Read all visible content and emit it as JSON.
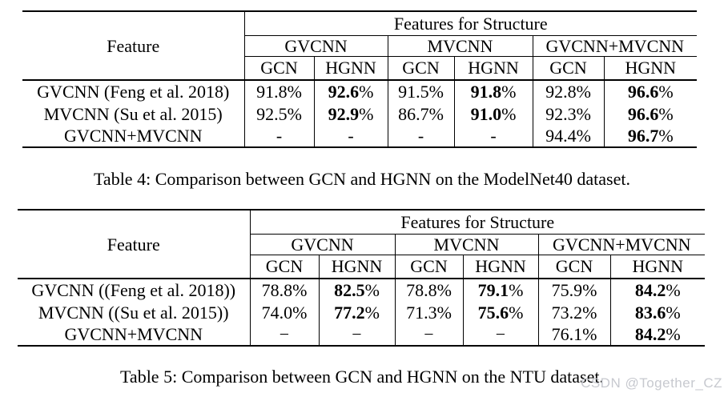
{
  "colors": {
    "text": "#000000",
    "rule": "#000000",
    "watermark_gray": "#c7c9cf",
    "background": "#ffffff"
  },
  "watermark": {
    "text": "CSDN @Together_CZ"
  },
  "tables": [
    {
      "caption": "Table 4: Comparison between GCN and HGNN on the ModelNet40 dataset.",
      "header": {
        "feature_label": "Feature",
        "group_title": "Features for Structure",
        "groups": [
          {
            "label": "GVCNN"
          },
          {
            "label": "MVCNN"
          },
          {
            "label": "GVCNN+MVCNN"
          }
        ],
        "subcols": [
          {
            "label": "GCN"
          },
          {
            "label": "HGNN"
          },
          {
            "label": "GCN"
          },
          {
            "label": "HGNN"
          },
          {
            "label": "GCN"
          },
          {
            "label": "HGNN"
          }
        ]
      },
      "rows": [
        {
          "label": "GVCNN (Feng et al. 2018)",
          "cells": [
            {
              "num": "91.8",
              "suffix": "%",
              "bold": false
            },
            {
              "num": "92.6",
              "suffix": "%",
              "bold": true
            },
            {
              "num": "91.5",
              "suffix": "%",
              "bold": false
            },
            {
              "num": "91.8",
              "suffix": "%",
              "bold": true
            },
            {
              "num": "92.8",
              "suffix": "%",
              "bold": false
            },
            {
              "num": "96.6",
              "suffix": "%",
              "bold": true
            }
          ]
        },
        {
          "label": "MVCNN (Su et al. 2015)",
          "cells": [
            {
              "num": "92.5",
              "suffix": "%",
              "bold": false
            },
            {
              "num": "92.9",
              "suffix": "%",
              "bold": true
            },
            {
              "num": "86.7",
              "suffix": "%",
              "bold": false
            },
            {
              "num": "91.0",
              "suffix": "%",
              "bold": true
            },
            {
              "num": "92.3",
              "suffix": "%",
              "bold": false
            },
            {
              "num": "96.6",
              "suffix": "%",
              "bold": true
            }
          ]
        },
        {
          "label": "GVCNN+MVCNN",
          "cells": [
            {
              "num": "-",
              "suffix": "",
              "bold": false
            },
            {
              "num": "-",
              "suffix": "",
              "bold": false
            },
            {
              "num": "-",
              "suffix": "",
              "bold": false
            },
            {
              "num": "-",
              "suffix": "",
              "bold": false
            },
            {
              "num": "94.4",
              "suffix": "%",
              "bold": false
            },
            {
              "num": "96.7",
              "suffix": "%",
              "bold": true
            }
          ]
        }
      ]
    },
    {
      "caption": "Table 5: Comparison between GCN and HGNN on the NTU dataset.",
      "header": {
        "feature_label": "Feature",
        "group_title": "Features for Structure",
        "groups": [
          {
            "label": "GVCNN"
          },
          {
            "label": "MVCNN"
          },
          {
            "label": "GVCNN+MVCNN"
          }
        ],
        "subcols": [
          {
            "label": "GCN"
          },
          {
            "label": "HGNN"
          },
          {
            "label": "GCN"
          },
          {
            "label": "HGNN"
          },
          {
            "label": "GCN"
          },
          {
            "label": "HGNN"
          }
        ]
      },
      "rows": [
        {
          "label": "GVCNN ((Feng et al. 2018))",
          "cells": [
            {
              "num": "78.8",
              "suffix": "%",
              "bold": false
            },
            {
              "num": "82.5",
              "suffix": "%",
              "bold": true
            },
            {
              "num": "78.8",
              "suffix": "%",
              "bold": false
            },
            {
              "num": "79.1",
              "suffix": "%",
              "bold": true
            },
            {
              "num": "75.9",
              "suffix": "%",
              "bold": false
            },
            {
              "num": "84.2",
              "suffix": "%",
              "bold": true
            }
          ]
        },
        {
          "label": "MVCNN ((Su et al. 2015))",
          "cells": [
            {
              "num": "74.0",
              "suffix": "%",
              "bold": false
            },
            {
              "num": "77.2",
              "suffix": "%",
              "bold": true
            },
            {
              "num": "71.3",
              "suffix": "%",
              "bold": false
            },
            {
              "num": "75.6",
              "suffix": "%",
              "bold": true
            },
            {
              "num": "73.2",
              "suffix": "%",
              "bold": false
            },
            {
              "num": "83.6",
              "suffix": "%",
              "bold": true
            }
          ]
        },
        {
          "label": "GVCNN+MVCNN",
          "cells": [
            {
              "num": "−",
              "suffix": "",
              "bold": false
            },
            {
              "num": "−",
              "suffix": "",
              "bold": false
            },
            {
              "num": "−",
              "suffix": "",
              "bold": false
            },
            {
              "num": "−",
              "suffix": "",
              "bold": false
            },
            {
              "num": "76.1",
              "suffix": "%",
              "bold": false
            },
            {
              "num": "84.2",
              "suffix": "%",
              "bold": true
            }
          ]
        }
      ]
    }
  ]
}
